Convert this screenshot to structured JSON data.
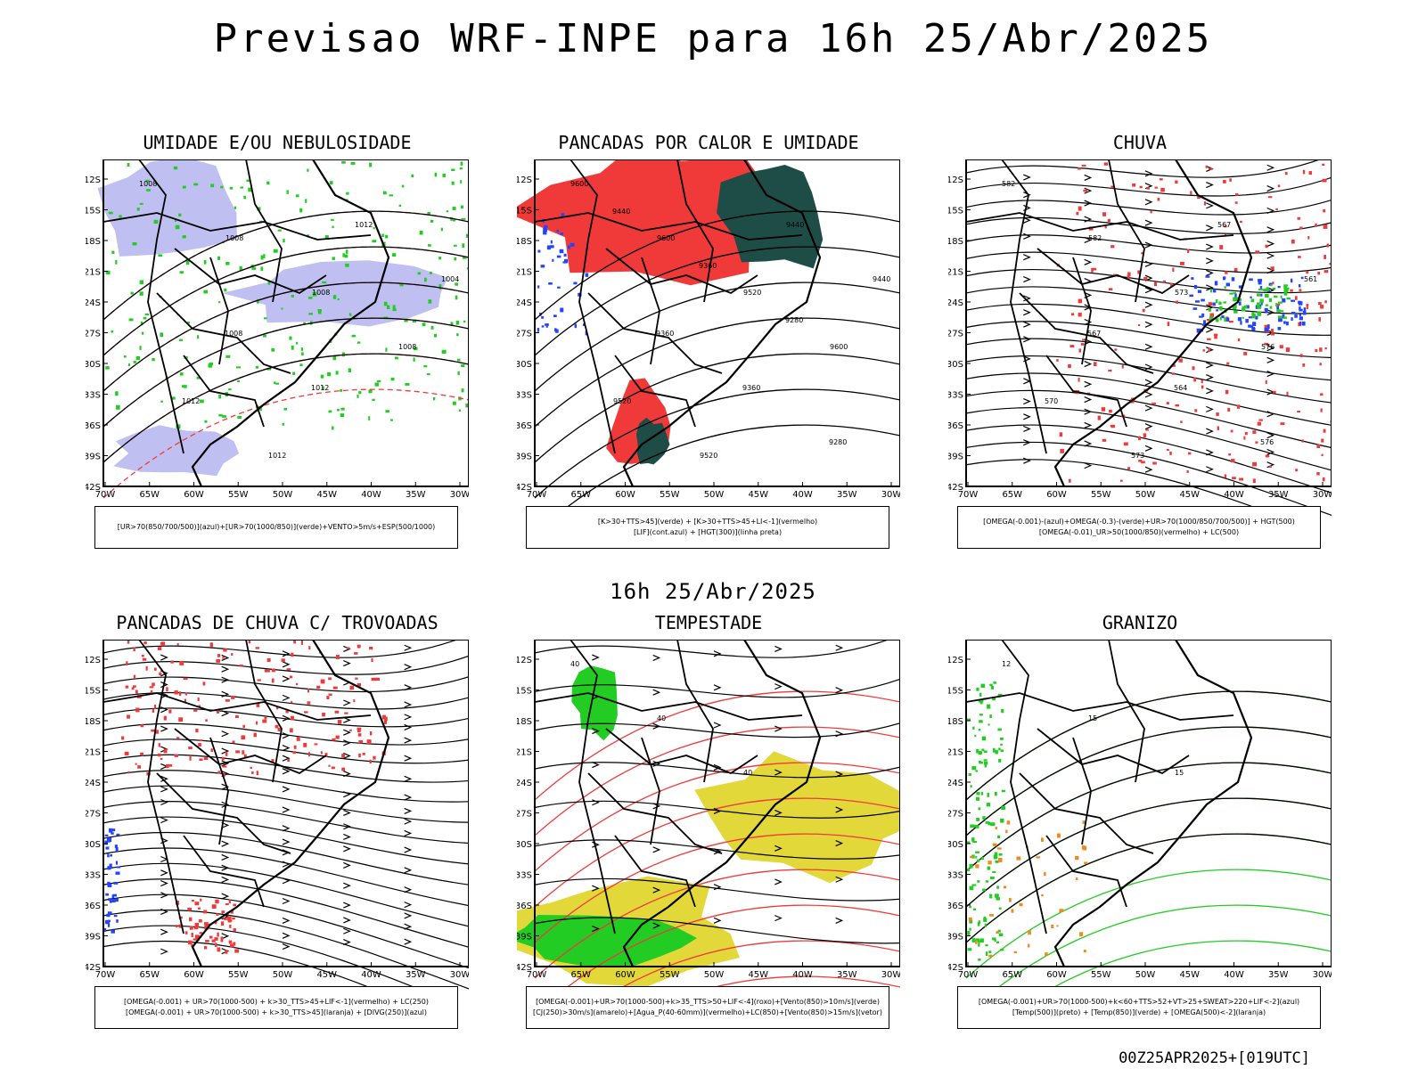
{
  "title": "Previsao WRF-INPE  para 16h 25/Abr/2025",
  "mid_title": "16h 25/Abr/2025",
  "footer": "00Z25APR2025+[019UTC]",
  "axes": {
    "lat_labels": [
      "12S",
      "15S",
      "18S",
      "21S",
      "24S",
      "27S",
      "30S",
      "33S",
      "36S",
      "39S",
      "42S"
    ],
    "lon_labels": [
      "70W",
      "65W",
      "60W",
      "55W",
      "50W",
      "45W",
      "40W",
      "35W",
      "30W"
    ]
  },
  "colors": {
    "red": "#f03a3a",
    "green": "#22cc22",
    "blue": "#2244ff",
    "lavender": "#b8b8f0",
    "darkteal": "#1e4d48",
    "yellow": "#e3d83a",
    "orange": "#f08a1e"
  },
  "panels": [
    {
      "title": "UMIDADE E/OU NEBULOSIDADE",
      "caption": [
        "[UR>70(850/700/500)](azul)+[UR>70(1000/850)](verde)+VENTO>5m/s+ESP(500/1000)"
      ],
      "contour_labels": [
        "1008",
        "1008",
        "1008",
        "1008",
        "1012",
        "1012",
        "1012",
        "1004",
        "1008",
        "1012"
      ]
    },
    {
      "title": "PANCADAS POR CALOR E UMIDADE",
      "caption": [
        "[K>30+TTS>45](verde) + [K>30+TTS>45+LI<-1](vermelho)",
        "[LIF](cont.azul) + [HGT(300)](linha preta)"
      ],
      "contour_labels": [
        "9600",
        "9600",
        "9520",
        "9600",
        "9520",
        "9520",
        "9440",
        "9440",
        "9360",
        "9360",
        "9280",
        "9440",
        "9360",
        "9280"
      ]
    },
    {
      "title": "CHUVA",
      "caption": [
        "[OMEGA(-0.001)-(azul)+OMEGA(-0.3)-(verde)+UR>70(1000/850/700/500)] + HGT(500)",
        "[OMEGA(-0.01)_UR>50(1000/850)(vermelho) + LC(500)"
      ],
      "contour_labels": [
        "582",
        "582",
        "573",
        "576",
        "570",
        "573",
        "567",
        "561",
        "567",
        "564",
        "576"
      ]
    },
    {
      "title": "PANCADAS DE CHUVA C/ TROVOADAS",
      "caption": [
        "[OMEGA(-0.001) + UR>70(1000-500) + k>30_TTS>45+LIF<-1](vermelho) + LC(250)",
        "[OMEGA(-0.001) + UR>70(1000-500) + k>30_TTS>45](laranja) + [DIVG(250)](azul)"
      ],
      "contour_labels": []
    },
    {
      "title": "TEMPESTADE",
      "caption": [
        "[OMEGA(-0.001)+UR>70(1000-500)+k>35_TTS>50+LIF<-4](roxo)+[Vento(850)>10m/s](verde)",
        "[CJ(250)>30m/s](amarelo)+[Agua_P(40-60mm)](vermelho)+LC(850)+[Vento(850)>15m/s](vetor)"
      ],
      "contour_labels": [
        "40",
        "40",
        "40"
      ]
    },
    {
      "title": "GRANIZO",
      "caption": [
        "[OMEGA(-0.001)+UR>70(1000-500)+k<60+TTS>52+VT>25+SWEAT>220+LIF<-2](azul)",
        "[Temp(500)](preto) + [Temp(850)](verde) + [OMEGA(500)<-2](laranja)"
      ],
      "contour_labels": [
        "12",
        "15",
        "15"
      ]
    }
  ]
}
